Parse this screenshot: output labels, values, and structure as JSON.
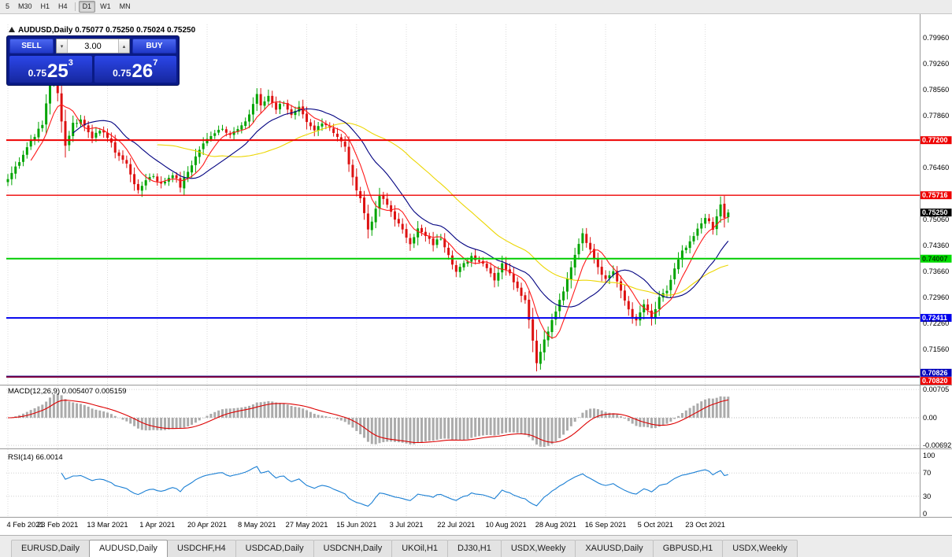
{
  "toolbar": {
    "timeframes": [
      "5",
      "M30",
      "H1",
      "H4",
      "D1",
      "W1",
      "MN"
    ],
    "active": "D1",
    "separator_after": "H4"
  },
  "chart_header": {
    "marker": "triangle-up",
    "title": "AUDUSD,Daily",
    "ohlc_text": "0.75077 0.75250 0.75024 0.75250"
  },
  "trade_panel": {
    "sell_label": "SELL",
    "buy_label": "BUY",
    "volume": "3.00",
    "spin_down": "▾",
    "spin_up": "▴",
    "sell_price": {
      "base": "0.75",
      "big": "25",
      "sup": "3"
    },
    "buy_price": {
      "base": "0.75",
      "big": "26",
      "sup": "7"
    }
  },
  "tabs": {
    "items": [
      {
        "label": "EURUSD,Daily",
        "active": false
      },
      {
        "label": "AUDUSD,Daily",
        "active": true
      },
      {
        "label": "USDCHF,H4",
        "active": false
      },
      {
        "label": "USDCAD,Daily",
        "active": false
      },
      {
        "label": "USDCNH,Daily",
        "active": false
      },
      {
        "label": "UKOil,H1",
        "active": false
      },
      {
        "label": "DJ30,H1",
        "active": false
      },
      {
        "label": "USDX,Weekly",
        "active": false
      },
      {
        "label": "XAUUSD,Daily",
        "active": false
      },
      {
        "label": "GBPUSD,H1",
        "active": false
      },
      {
        "label": "USDX,Weekly",
        "active": false
      }
    ]
  },
  "chart_data": {
    "type": "candlestick",
    "symbol": "AUDUSD",
    "timeframe": "Daily",
    "ohlc_current": {
      "open": 0.75077,
      "high": 0.7525,
      "low": 0.75024,
      "close": 0.7525
    },
    "num_candles": 189,
    "last_close": 0.7525,
    "candle_up_color": "#00a400",
    "candle_down_color": "#dd1111",
    "price_anchors": [
      [
        0,
        0.7615
      ],
      [
        3,
        0.7665
      ],
      [
        6,
        0.772
      ],
      [
        9,
        0.776
      ],
      [
        11,
        0.788
      ],
      [
        12,
        0.7885
      ],
      [
        13,
        0.7845
      ],
      [
        15,
        0.7705
      ],
      [
        17,
        0.7765
      ],
      [
        19,
        0.7775
      ],
      [
        22,
        0.773
      ],
      [
        25,
        0.7745
      ],
      [
        28,
        0.769
      ],
      [
        31,
        0.7655
      ],
      [
        34,
        0.758
      ],
      [
        36,
        0.7615
      ],
      [
        38,
        0.7625
      ],
      [
        40,
        0.76
      ],
      [
        43,
        0.763
      ],
      [
        45,
        0.7595
      ],
      [
        47,
        0.7635
      ],
      [
        50,
        0.7695
      ],
      [
        53,
        0.7735
      ],
      [
        56,
        0.7755
      ],
      [
        58,
        0.7735
      ],
      [
        61,
        0.7755
      ],
      [
        63,
        0.779
      ],
      [
        65,
        0.7845
      ],
      [
        66,
        0.781
      ],
      [
        68,
        0.784
      ],
      [
        70,
        0.7805
      ],
      [
        72,
        0.7825
      ],
      [
        74,
        0.7785
      ],
      [
        76,
        0.7805
      ],
      [
        78,
        0.7765
      ],
      [
        80,
        0.7745
      ],
      [
        82,
        0.777
      ],
      [
        84,
        0.7755
      ],
      [
        86,
        0.773
      ],
      [
        88,
        0.77
      ],
      [
        90,
        0.7615
      ],
      [
        92,
        0.7565
      ],
      [
        94,
        0.748
      ],
      [
        96,
        0.753
      ],
      [
        97,
        0.757
      ],
      [
        99,
        0.7545
      ],
      [
        101,
        0.751
      ],
      [
        103,
        0.7475
      ],
      [
        105,
        0.7445
      ],
      [
        107,
        0.748
      ],
      [
        109,
        0.746
      ],
      [
        111,
        0.744
      ],
      [
        113,
        0.7458
      ],
      [
        115,
        0.7415
      ],
      [
        117,
        0.7365
      ],
      [
        119,
        0.7385
      ],
      [
        121,
        0.7408
      ],
      [
        123,
        0.7395
      ],
      [
        125,
        0.738
      ],
      [
        127,
        0.7345
      ],
      [
        129,
        0.7385
      ],
      [
        131,
        0.7365
      ],
      [
        133,
        0.732
      ],
      [
        135,
        0.729
      ],
      [
        136,
        0.724
      ],
      [
        137,
        0.718
      ],
      [
        138,
        0.712
      ],
      [
        139,
        0.7155
      ],
      [
        141,
        0.7205
      ],
      [
        143,
        0.726
      ],
      [
        145,
        0.731
      ],
      [
        147,
        0.738
      ],
      [
        149,
        0.7445
      ],
      [
        150,
        0.7465
      ],
      [
        152,
        0.743
      ],
      [
        154,
        0.738
      ],
      [
        156,
        0.7345
      ],
      [
        158,
        0.7368
      ],
      [
        160,
        0.731
      ],
      [
        162,
        0.7265
      ],
      [
        164,
        0.723
      ],
      [
        166,
        0.7278
      ],
      [
        168,
        0.7238
      ],
      [
        170,
        0.7292
      ],
      [
        172,
        0.7315
      ],
      [
        174,
        0.7372
      ],
      [
        176,
        0.7418
      ],
      [
        178,
        0.7442
      ],
      [
        180,
        0.7478
      ],
      [
        182,
        0.7515
      ],
      [
        184,
        0.7478
      ],
      [
        186,
        0.7548
      ],
      [
        187,
        0.7508
      ],
      [
        188,
        0.7525
      ]
    ],
    "moving_averages": [
      {
        "period": 40,
        "color": "#ecd600"
      },
      {
        "period": 18,
        "color": "#000080"
      },
      {
        "period": 7,
        "color": "#ff1a1a"
      }
    ],
    "levels": [
      {
        "price": 0.772,
        "color": "#ee0000",
        "width": 2,
        "badge": "0.77200",
        "badge_bg": "#ee0000",
        "badge_fg": "#ffffff",
        "badge_dy": 0
      },
      {
        "price": 0.75716,
        "color": "#ee0000",
        "width": 1.3,
        "badge": "0.75716",
        "badge_bg": "#ee0000",
        "badge_fg": "#ffffff",
        "badge_dy": 0
      },
      {
        "price": 0.74007,
        "color": "#00cc00",
        "width": 2,
        "badge": "0.74007",
        "badge_bg": "#00dd00",
        "badge_fg": "#004400",
        "badge_dy": 0
      },
      {
        "price": 0.72411,
        "color": "#0000ee",
        "width": 2,
        "badge": "0.72411",
        "badge_bg": "#0000ee",
        "badge_fg": "#ffffff",
        "badge_dy": 0
      },
      {
        "price": 0.70826,
        "color": "#000088",
        "width": 2.5,
        "badge": "0.70826",
        "badge_bg": "#0000bb",
        "badge_fg": "#ffffff",
        "badge_dy": -5
      },
      {
        "price": 0.7082,
        "color": "#ee0000",
        "width": 1,
        "badge": "0.70820",
        "badge_bg": "#ee0000",
        "badge_fg": "#ffffff",
        "badge_dy": 5
      }
    ],
    "current_price_badge": {
      "text": "0.75250",
      "bg": "#000000",
      "fg": "#ffffff"
    },
    "price_axis_ticks": [
      "0.79960",
      "0.79260",
      "0.78560",
      "0.77860",
      "0.77160",
      "0.76460",
      "0.75760",
      "0.75060",
      "0.74360",
      "0.73660",
      "0.72960",
      "0.72260",
      "0.71560",
      "0.70860"
    ],
    "x_axis_labels": [
      {
        "day": 0,
        "label": "4 Feb 2021"
      },
      {
        "day": 13,
        "label": "23 Feb 2021"
      },
      {
        "day": 26,
        "label": "13 Mar 2021"
      },
      {
        "day": 39,
        "label": "1 Apr 2021"
      },
      {
        "day": 52,
        "label": "20 Apr 2021"
      },
      {
        "day": 65,
        "label": "8 May 2021"
      },
      {
        "day": 78,
        "label": "27 May 2021"
      },
      {
        "day": 91,
        "label": "15 Jun 2021"
      },
      {
        "day": 104,
        "label": "3 Jul 2021"
      },
      {
        "day": 117,
        "label": "22 Jul 2021"
      },
      {
        "day": 130,
        "label": "10 Aug 2021"
      },
      {
        "day": 143,
        "label": "28 Aug 2021"
      },
      {
        "day": 156,
        "label": "16 Sep 2021"
      },
      {
        "day": 169,
        "label": "5 Oct 2021"
      },
      {
        "day": 182,
        "label": "23 Oct 2021"
      }
    ],
    "macd": {
      "title": "MACD(12,26,9)",
      "values": [
        "0.005407",
        "0.005159"
      ],
      "fast": 12,
      "slow": 26,
      "signal": 9,
      "axis_labels": [
        "0.00705",
        "0.00",
        "-0.00692"
      ],
      "hist_color": "#ababab",
      "signal_color": "#dd0000"
    },
    "rsi": {
      "title": "RSI(14)",
      "value": "66.0014",
      "period": 14,
      "axis_labels": [
        "100",
        "70",
        "30",
        "0"
      ],
      "levels": [
        70,
        30
      ],
      "line_color": "#1a7fd4"
    }
  }
}
